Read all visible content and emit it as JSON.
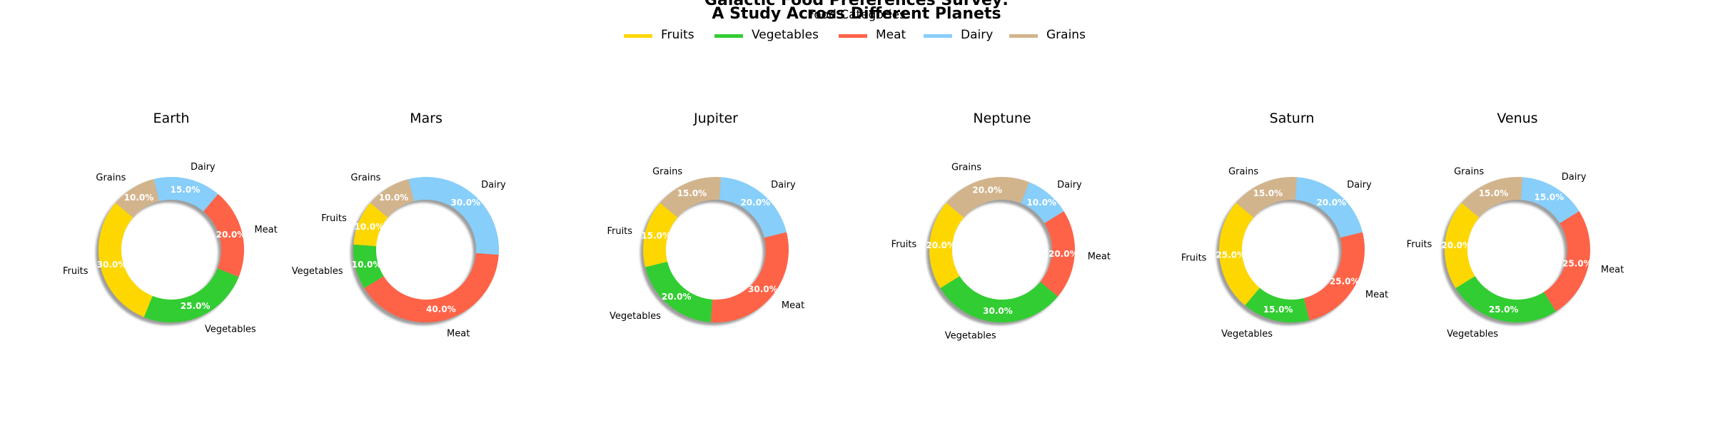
{
  "chart_data": {
    "type": "pie",
    "subtype": "donut",
    "title_lines": [
      "Galactic Food Preferences Survey:",
      "A Study Across Different Planets"
    ],
    "legend": {
      "title": "Food Categories",
      "placement": "top-center",
      "entries": [
        "Fruits",
        "Vegetables",
        "Meat",
        "Dairy",
        "Grains"
      ]
    },
    "categories": [
      "Fruits",
      "Vegetables",
      "Meat",
      "Dairy",
      "Grains"
    ],
    "colors": {
      "Fruits": "#FFD700",
      "Vegetables": "#32CD32",
      "Meat": "#FF6347",
      "Dairy": "#87CEFA",
      "Grains": "#D2B48C"
    },
    "charts": [
      {
        "title": "Earth",
        "values": [
          30,
          25,
          20,
          15,
          10
        ],
        "value_labels": [
          "30.0%",
          "25.0%",
          "20.0%",
          "15.0%",
          "10.0%"
        ]
      },
      {
        "title": "Mars",
        "values": [
          10,
          10,
          40,
          30,
          10
        ],
        "value_labels": [
          "10.0%",
          "10.0%",
          "40.0%",
          "30.0%",
          "10.0%"
        ]
      },
      {
        "title": "Jupiter",
        "values": [
          15,
          20,
          30,
          20,
          15
        ],
        "value_labels": [
          "15.0%",
          "20.0%",
          "30.0%",
          "20.0%",
          "15.0%"
        ]
      },
      {
        "title": "Neptune",
        "values": [
          20,
          30,
          20,
          10,
          20
        ],
        "value_labels": [
          "20.0%",
          "30.0%",
          "20.0%",
          "10.0%",
          "20.0%"
        ]
      },
      {
        "title": "Saturn",
        "values": [
          25,
          15,
          25,
          20,
          15
        ],
        "value_labels": [
          "25.0%",
          "15.0%",
          "25.0%",
          "20.0%",
          "15.0%"
        ]
      },
      {
        "title": "Venus",
        "values": [
          20,
          25,
          25,
          15,
          15
        ],
        "value_labels": [
          "20.0%",
          "25.0%",
          "25.0%",
          "15.0%",
          "15.0%"
        ]
      }
    ],
    "start_angle_deg": 140,
    "direction": "counterclockwise",
    "shadow": true
  }
}
